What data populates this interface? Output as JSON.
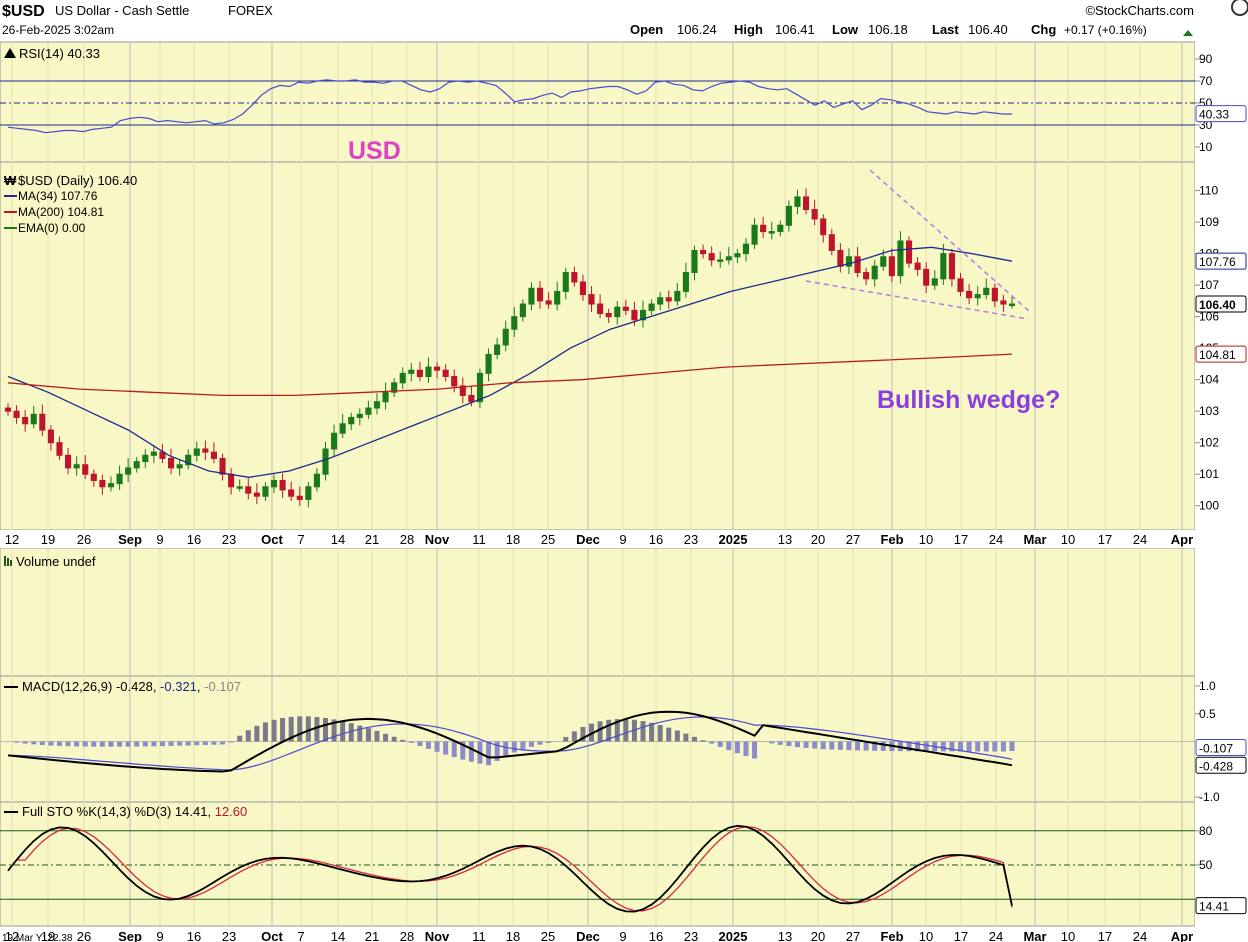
{
  "header": {
    "symbol": "$USD",
    "name": "US Dollar - Cash Settle",
    "exchange": "FOREX",
    "brand": "©StockCharts.com",
    "date": "26-Feb-2025 3:02am",
    "open_label": "Open",
    "open": "106.24",
    "high_label": "High",
    "high": "106.41",
    "low_label": "Low",
    "low": "106.18",
    "last_label": "Last",
    "last": "106.40",
    "chg_label": "Chg",
    "chg": "+0.17 (+0.16%)"
  },
  "colors": {
    "panel_bg": "#f8f7c6",
    "up": "#1a7a1a",
    "down": "#c0142c",
    "ma34": "#1b2a8a",
    "ma200": "#b81c1c",
    "annot_usd": "#e040c8",
    "annot_wedge": "#8a3ee0"
  },
  "rsi": {
    "legend": "RSI(14) 40.33",
    "ticks": [
      "90",
      "70",
      "50",
      "30",
      "10"
    ],
    "value_label": "40.33",
    "series": [
      28,
      27,
      26,
      25,
      23,
      24,
      25,
      25,
      24,
      26,
      27,
      28,
      34,
      36,
      37,
      36,
      33,
      34,
      33,
      32,
      33,
      34,
      31,
      32,
      35,
      40,
      48,
      57,
      63,
      66,
      65,
      69,
      68,
      70,
      71,
      70,
      70,
      71,
      69,
      69,
      68,
      70,
      70,
      66,
      62,
      60,
      63,
      69,
      70,
      69,
      70,
      68,
      66,
      59,
      51,
      53,
      54,
      57,
      59,
      55,
      60,
      61,
      63,
      64,
      65,
      65,
      62,
      58,
      61,
      69,
      70,
      67,
      66,
      62,
      61,
      65,
      68,
      69,
      70,
      69,
      65,
      63,
      62,
      63,
      58,
      53,
      48,
      52,
      46,
      49,
      52,
      44,
      48,
      54,
      53,
      51,
      49,
      46,
      42,
      41,
      40,
      42,
      41,
      40,
      42,
      41,
      40,
      40
    ]
  },
  "usd": {
    "legend_title": "$USD (Daily) 106.40",
    "legend_ma34": "MA(34) 107.76",
    "legend_ma200": "MA(200) 104.81",
    "legend_ema": "EMA(0) 0.00",
    "annotation_usd": "USD",
    "annotation_wedge": "Bullish wedge?",
    "ticks": [
      "110",
      "109",
      "108",
      "107",
      "106",
      "105",
      "104",
      "103",
      "102",
      "101",
      "100"
    ],
    "label_ma34": "107.76",
    "label_last": "106.40",
    "label_ma200": "104.81"
  },
  "xaxis": {
    "labels": [
      "12",
      "19",
      "26",
      "Sep",
      "9",
      "16",
      "23",
      "Oct",
      "7",
      "14",
      "21",
      "28",
      "Nov",
      "11",
      "18",
      "25",
      "Dec",
      "9",
      "16",
      "23",
      "2025",
      "13",
      "20",
      "27",
      "Feb",
      "10",
      "17",
      "24",
      "Mar",
      "10",
      "17",
      "24",
      "Apr"
    ],
    "bold": [
      "Sep",
      "Oct",
      "Nov",
      "Dec",
      "2025",
      "Feb",
      "Mar",
      "Apr"
    ]
  },
  "volume": {
    "legend": "Volume undef"
  },
  "macd": {
    "legend_prefix": "MACD(12,26,9)",
    "legend_macd": "-0.428",
    "legend_signal": "-0.321",
    "legend_hist": "-0.107",
    "ticks": [
      "1.0",
      "0.5",
      "-1.0"
    ],
    "label_hist": "-0.107",
    "label_macd": "-0.428"
  },
  "sto": {
    "legend_prefix": "Full STO %K(14,3) %D(3)",
    "legend_k": "14.41",
    "legend_d": "12.60",
    "ticks": [
      "80",
      "50"
    ],
    "value_label": "14.41",
    "bottom_info": "19 Mar Y: 22.38"
  },
  "chart_data": {
    "type": "candlestick",
    "title": "$USD US Dollar - Cash Settle FOREX",
    "symbol": "$USD",
    "interval": "Daily",
    "last": 106.4,
    "open": 106.24,
    "high": 106.41,
    "low": 106.18,
    "ylim": [
      99.8,
      110.4
    ],
    "approx_closes": [
      103.0,
      102.8,
      102.6,
      102.9,
      102.4,
      102.0,
      101.6,
      101.2,
      101.3,
      101.0,
      100.8,
      100.6,
      100.7,
      101.0,
      101.2,
      101.4,
      101.6,
      101.7,
      101.5,
      101.2,
      101.3,
      101.6,
      101.8,
      101.7,
      101.5,
      101.0,
      100.6,
      100.6,
      100.4,
      100.3,
      100.6,
      100.8,
      100.5,
      100.3,
      100.2,
      100.6,
      101.0,
      101.8,
      102.3,
      102.6,
      102.8,
      102.9,
      103.1,
      103.3,
      103.6,
      103.9,
      104.2,
      104.3,
      104.1,
      104.4,
      104.3,
      104.1,
      103.8,
      103.5,
      103.3,
      104.2,
      104.8,
      105.1,
      105.6,
      106.0,
      106.4,
      106.9,
      106.5,
      106.4,
      106.8,
      107.4,
      107.1,
      106.7,
      106.4,
      106.1,
      106.0,
      106.3,
      106.2,
      105.9,
      106.2,
      106.4,
      106.6,
      106.5,
      106.8,
      107.4,
      108.1,
      108.0,
      107.8,
      107.8,
      107.9,
      108.0,
      108.3,
      108.9,
      108.7,
      108.7,
      108.9,
      109.5,
      109.8,
      109.4,
      109.1,
      108.6,
      108.1,
      107.6,
      107.9,
      107.4,
      107.2,
      107.6,
      107.9,
      107.3,
      108.4,
      107.7,
      107.5,
      107.0,
      107.2,
      108.0,
      107.2,
      106.8,
      106.6,
      106.7,
      106.9,
      106.5,
      106.4,
      106.4
    ],
    "ma34_approx": [
      104.1,
      103.6,
      103.0,
      102.4,
      101.6,
      101.1,
      100.9,
      101.1,
      101.5,
      102.0,
      102.5,
      103.0,
      103.5,
      104.2,
      105.0,
      105.6,
      106.0,
      106.4,
      106.8,
      107.1,
      107.4,
      107.7,
      108.1,
      108.2,
      108.0,
      107.76
    ],
    "ma200_approx": [
      103.9,
      103.7,
      103.6,
      103.5,
      103.5,
      103.6,
      103.7,
      103.9,
      104.0,
      104.2,
      104.4,
      104.5,
      104.6,
      104.7,
      104.81
    ]
  }
}
